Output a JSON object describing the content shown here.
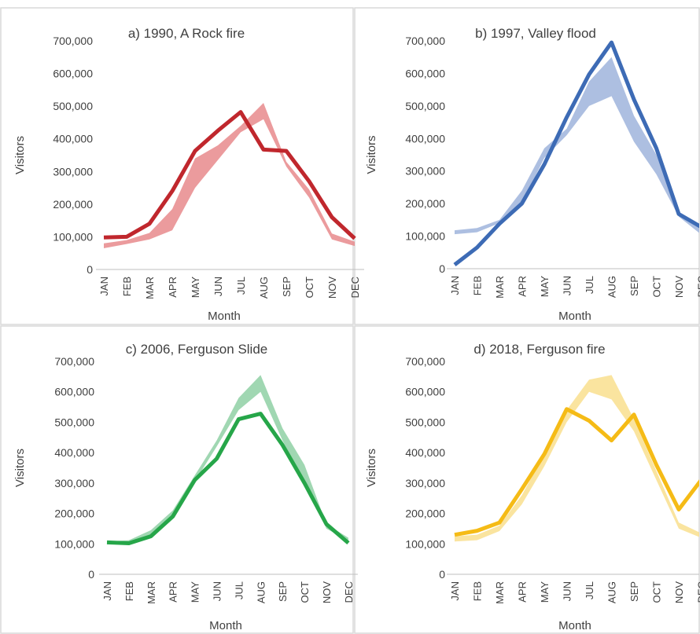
{
  "chart_data": [
    {
      "type": "line",
      "title": "a) 1990, A Rock fire",
      "xlabel": "Month",
      "ylabel": "Visitors",
      "ylim": [
        0,
        700000
      ],
      "yticks": [
        "0",
        "100,000",
        "200,000",
        "300,000",
        "400,000",
        "500,000",
        "600,000",
        "700,000"
      ],
      "categories": [
        "JAN",
        "FEB",
        "MAR",
        "APR",
        "MAY",
        "JUN",
        "JUL",
        "AUG",
        "SEP",
        "OCT",
        "NOV",
        "DEC"
      ],
      "color": "#c0272d",
      "band_color": "#e8898c",
      "band_low": [
        65000,
        78000,
        92000,
        120000,
        250000,
        335000,
        420000,
        460000,
        315000,
        220000,
        92000,
        72000
      ],
      "band_high": [
        80000,
        90000,
        112000,
        185000,
        340000,
        380000,
        440000,
        510000,
        330000,
        245000,
        110000,
        85000
      ],
      "series": [
        {
          "values": [
            98000,
            100000,
            140000,
            240000,
            363000,
            425000,
            482000,
            367000,
            363000,
            270000,
            160000,
            95000
          ]
        }
      ]
    },
    {
      "type": "line",
      "title": "b) 1997, Valley flood",
      "xlabel": "Month",
      "ylabel": "Visitors",
      "ylim": [
        0,
        700000
      ],
      "yticks": [
        "0",
        "100,000",
        "200,000",
        "300,000",
        "400,000",
        "500,000",
        "600,000",
        "700,000"
      ],
      "categories": [
        "JAN",
        "FEB",
        "MAR",
        "APR",
        "MAY",
        "JUN",
        "JUL",
        "AUG",
        "SEP",
        "OCT",
        "NOV",
        "DEC"
      ],
      "color": "#3d6bb5",
      "band_color": "#9fb4dc",
      "band_low": [
        106000,
        112000,
        140000,
        200000,
        340000,
        410000,
        500000,
        530000,
        390000,
        290000,
        160000,
        105000
      ],
      "band_high": [
        118000,
        125000,
        150000,
        240000,
        370000,
        430000,
        575000,
        650000,
        470000,
        350000,
        175000,
        120000
      ],
      "series": [
        {
          "values": [
            12000,
            65000,
            138000,
            200000,
            320000,
            465000,
            597000,
            695000,
            520000,
            370000,
            168000,
            128000
          ]
        }
      ]
    },
    {
      "type": "line",
      "title": "c) 2006, Ferguson Slide",
      "xlabel": "Month",
      "ylabel": "Visitors",
      "ylim": [
        0,
        700000
      ],
      "yticks": [
        "0",
        "100,000",
        "200,000",
        "300,000",
        "400,000",
        "500,000",
        "600,000",
        "700,000"
      ],
      "categories": [
        "JAN",
        "FEB",
        "MAR",
        "APR",
        "MAY",
        "JUN",
        "JUL",
        "AUG",
        "SEP",
        "OCT",
        "NOV",
        "DEC"
      ],
      "color": "#26a649",
      "band_color": "#8fd0a5",
      "band_low": [
        100000,
        103000,
        125000,
        190000,
        305000,
        420000,
        540000,
        600000,
        440000,
        300000,
        150000,
        110000
      ],
      "band_high": [
        108000,
        112000,
        145000,
        210000,
        325000,
        440000,
        580000,
        655000,
        480000,
        360000,
        165000,
        120000
      ],
      "series": [
        {
          "values": [
            105000,
            102000,
            125000,
            190000,
            310000,
            380000,
            510000,
            528000,
            425000,
            300000,
            165000,
            103000
          ]
        }
      ]
    },
    {
      "type": "line",
      "title": "d) 2018, Ferguson fire",
      "xlabel": "Month",
      "ylabel": "Visitors",
      "ylim": [
        0,
        700000
      ],
      "yticks": [
        "0",
        "100,000",
        "200,000",
        "300,000",
        "400,000",
        "500,000",
        "600,000",
        "700,000"
      ],
      "categories": [
        "JAN",
        "FEB",
        "MAR",
        "APR",
        "MAY",
        "JUN",
        "JUL",
        "AUG",
        "SEP",
        "OCT",
        "NOV",
        "DEC"
      ],
      "color": "#f5bb16",
      "band_color": "#f9df8e",
      "band_low": [
        108000,
        112000,
        142000,
        230000,
        355000,
        500000,
        600000,
        575000,
        470000,
        310000,
        150000,
        120000
      ],
      "band_high": [
        125000,
        130000,
        160000,
        260000,
        395000,
        540000,
        640000,
        655000,
        510000,
        340000,
        170000,
        135000
      ],
      "series": [
        {
          "values": [
            130000,
            143000,
            170000,
            280000,
            395000,
            543000,
            505000,
            440000,
            525000,
            360000,
            213000,
            310000
          ]
        }
      ]
    }
  ]
}
